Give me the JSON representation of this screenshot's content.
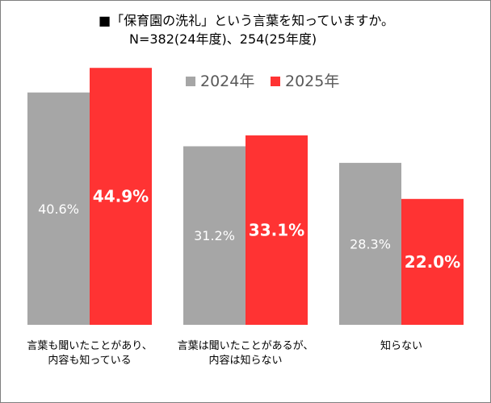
{
  "chart_data": {
    "type": "bar",
    "title_lines": [
      "■「保育園の洗礼」という言葉を知っていますか。",
      "N=382(24年度)、254(25年度)"
    ],
    "categories": [
      [
        "言葉も聞いたことがあり、",
        "内容も知っている"
      ],
      [
        "言葉は聞いたことがあるが、",
        "内容は知らない"
      ],
      [
        "知らない"
      ]
    ],
    "series": [
      {
        "name": "2024年",
        "color": "#a6a6a6",
        "values": [
          40.6,
          31.2,
          28.3
        ],
        "labels": [
          "40.6%",
          "31.2%",
          "28.3%"
        ]
      },
      {
        "name": "2025年",
        "color": "#ff3333",
        "values": [
          44.9,
          33.1,
          22.0
        ],
        "labels": [
          "44.9%",
          "33.1%",
          "22.0%"
        ]
      }
    ],
    "ylim": [
      0,
      50
    ],
    "legend_position": "top-right",
    "grid": false
  }
}
